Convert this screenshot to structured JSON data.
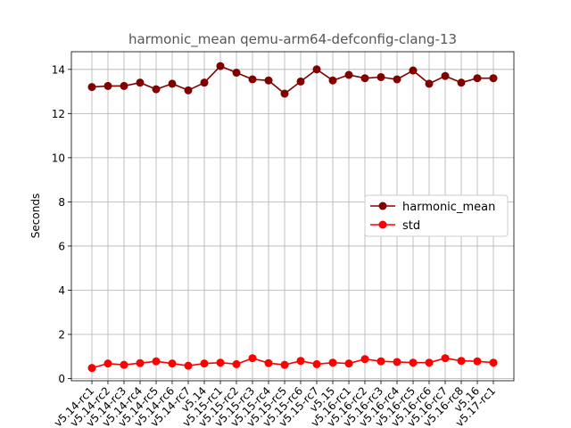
{
  "chart_data": {
    "type": "line",
    "title": "harmonic_mean qemu-arm64-defconfig-clang-13",
    "xlabel": "",
    "ylabel": "Seconds",
    "ylim": [
      -0.1,
      14.8
    ],
    "yticks": [
      0,
      2,
      4,
      6,
      8,
      10,
      12,
      14
    ],
    "grid": true,
    "legend_position": "center-right",
    "categories": [
      "v5.14-rc1",
      "v5.14-rc2",
      "v5.14-rc3",
      "v5.14-rc4",
      "v5.14-rc5",
      "v5.14-rc6",
      "v5.14-rc7",
      "v5.14",
      "v5.15-rc1",
      "v5.15-rc2",
      "v5.15-rc3",
      "v5.15-rc4",
      "v5.15-rc5",
      "v5.15-rc6",
      "v5.15-rc7",
      "v5.15",
      "v5.16-rc1",
      "v5.16-rc2",
      "v5.16-rc3",
      "v5.16-rc4",
      "v5.16-rc5",
      "v5.16-rc6",
      "v5.16-rc7",
      "v5.16-rc8",
      "v5.16",
      "v5.17-rc1"
    ],
    "series": [
      {
        "name": "harmonic_mean",
        "color": "#800000",
        "values": [
          13.2,
          13.25,
          13.25,
          13.4,
          13.1,
          13.35,
          13.05,
          13.4,
          14.15,
          13.85,
          13.55,
          13.5,
          12.9,
          13.45,
          14.0,
          13.5,
          13.75,
          13.6,
          13.65,
          13.55,
          13.95,
          13.35,
          13.7,
          13.4,
          13.6,
          13.6
        ]
      },
      {
        "name": "std",
        "color": "#ff0000",
        "values": [
          0.48,
          0.68,
          0.62,
          0.7,
          0.78,
          0.68,
          0.58,
          0.68,
          0.72,
          0.65,
          0.92,
          0.7,
          0.62,
          0.8,
          0.65,
          0.72,
          0.68,
          0.88,
          0.78,
          0.75,
          0.72,
          0.72,
          0.92,
          0.8,
          0.78,
          0.72
        ]
      }
    ]
  }
}
